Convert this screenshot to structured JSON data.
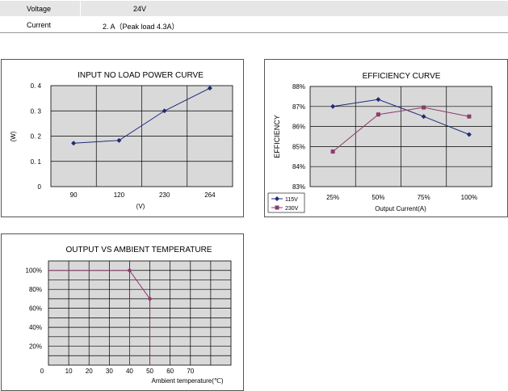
{
  "spec_table": {
    "rows": [
      {
        "label": "Voltage",
        "value": "24V"
      },
      {
        "label": "Current",
        "value": "2. A（Peak load 4.3A）"
      }
    ]
  },
  "colors": {
    "series_blue": "#1f2a7a",
    "series_purple": "#8c3a6b",
    "plot_bg": "#d9d9d9",
    "grid": "#000000"
  },
  "chart_data": [
    {
      "type": "line",
      "title": "INPUT NO LOAD POWER CURVE",
      "xlabel": "(V)",
      "ylabel": "(W)",
      "categories": [
        "90",
        "120",
        "230",
        "264"
      ],
      "yticks": [
        "0",
        "0. 1",
        "0. 2",
        "0. 3",
        "0. 4"
      ],
      "ylim": [
        0,
        0.4
      ],
      "grid": true,
      "series": [
        {
          "values": [
            0.172,
            0.183,
            0.3,
            0.39
          ],
          "color": "#1f2a7a"
        }
      ]
    },
    {
      "type": "line",
      "title": "EFFICIENCY CURVE",
      "xlabel": "Output Current(A)",
      "ylabel": "EFFICIENCY",
      "categories": [
        "25%",
        "50%",
        "75%",
        "100%"
      ],
      "yticks": [
        "83%",
        "84%",
        "85%",
        "86%",
        "87%",
        "88%"
      ],
      "ylim": [
        83,
        88
      ],
      "grid": true,
      "legend": "bottom-left",
      "series": [
        {
          "name": "115V",
          "values": [
            87.0,
            87.35,
            86.5,
            85.6
          ],
          "color": "#1f2a7a",
          "marker": "diamond"
        },
        {
          "name": "230V",
          "values": [
            84.75,
            86.6,
            86.95,
            86.5
          ],
          "color": "#8c3a6b",
          "marker": "square"
        }
      ]
    },
    {
      "type": "line",
      "title": "OUTPUT VS AMBIENT TEMPERATURE",
      "xlabel": "Ambient temperature(℃)",
      "ylabel": "",
      "xticks": [
        "0",
        "10",
        "20",
        "30",
        "40",
        "50",
        "60",
        "70"
      ],
      "yticks": [
        "20%",
        "40%",
        "60%",
        "80%",
        "100%"
      ],
      "xlim": [
        0,
        90
      ],
      "ylim": [
        0,
        110
      ],
      "grid": true,
      "series": [
        {
          "x": [
            0,
            40,
            50
          ],
          "y": [
            100,
            100,
            70
          ],
          "color": "#8c3a6b"
        }
      ],
      "dashed_drops": [
        40,
        50
      ]
    }
  ]
}
